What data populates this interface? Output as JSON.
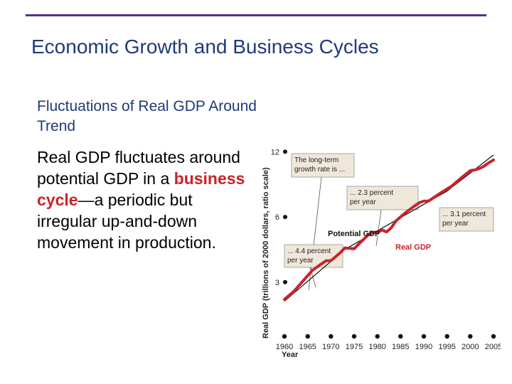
{
  "colors": {
    "title": "#1f3a7a",
    "rule": "#5a2e8c",
    "accent": "#c8242b",
    "trend": "#111111",
    "note_bg": "#efe7da"
  },
  "slide": {
    "title": "Economic Growth and Business Cycles",
    "subheading": "Fluctuations of Real GDP Around Trend",
    "body_before": "Real GDP fluctuates around potential GDP in a",
    "body_term": "business cycle",
    "body_after": "—a periodic but irregular up-and-down movement in production."
  },
  "chart_data": {
    "type": "line",
    "xlabel": "Year",
    "ylabel": "Real GDP (trillions of 2000 dollars, ratio scale)",
    "y_scale": "log",
    "ylim": [
      2.3,
      12.5
    ],
    "xlim": [
      1960,
      2005
    ],
    "x_ticks": [
      1960,
      1965,
      1970,
      1975,
      1980,
      1985,
      1990,
      1995,
      2000,
      2005
    ],
    "y_ticks": [
      3,
      6,
      12
    ],
    "series": [
      {
        "name": "Real GDP",
        "color": "#c8242b",
        "x": [
          1960,
          1962,
          1964,
          1966,
          1968,
          1969,
          1970,
          1972,
          1973,
          1974,
          1975,
          1976,
          1978,
          1979,
          1980,
          1981,
          1982,
          1983,
          1984,
          1986,
          1988,
          1989,
          1990,
          1991,
          1992,
          1994,
          1996,
          1998,
          2000,
          2001,
          2002,
          2003,
          2004,
          2005
        ],
        "y": [
          2.5,
          2.72,
          3.04,
          3.4,
          3.65,
          3.77,
          3.77,
          4.1,
          4.32,
          4.3,
          4.28,
          4.5,
          4.95,
          5.1,
          5.1,
          5.22,
          5.12,
          5.35,
          5.75,
          6.27,
          6.74,
          6.98,
          7.1,
          7.1,
          7.34,
          7.84,
          8.33,
          9.07,
          9.82,
          9.89,
          10.05,
          10.3,
          10.68,
          11.0
        ]
      },
      {
        "name": "Potential GDP",
        "color": "#111111",
        "x": [
          1960,
          1973,
          1995,
          2005
        ],
        "y": [
          2.45,
          4.25,
          7.9,
          11.6
        ]
      }
    ],
    "annotations": [
      {
        "lines": [
          "The long-term",
          "growth rate is ..."
        ]
      },
      {
        "lines": [
          "... 4.4 percent",
          "per year"
        ]
      },
      {
        "lines": [
          "... 2.3 percent",
          "per year"
        ]
      },
      {
        "lines": [
          "... 3.1 percent",
          "per year"
        ]
      }
    ]
  }
}
